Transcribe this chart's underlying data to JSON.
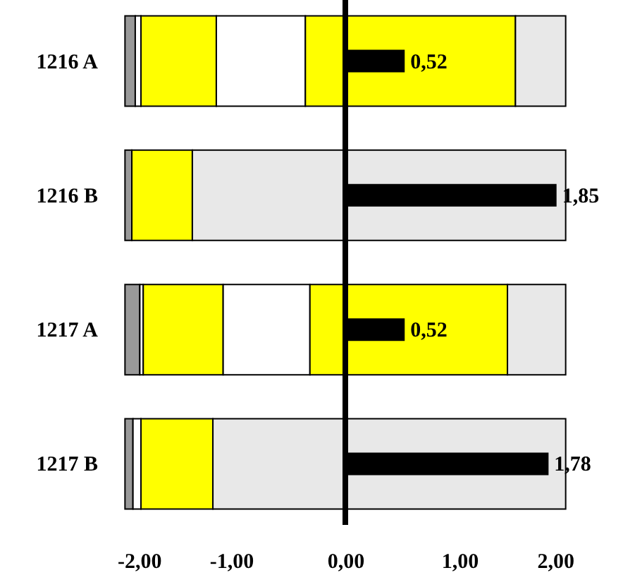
{
  "chart_data": {
    "type": "bar",
    "orientation": "horizontal",
    "categories": [
      "1216 A",
      "1216 B",
      "1217 A",
      "1217 B"
    ],
    "series": [
      {
        "color": "#999999",
        "base": [
          -1.93,
          -1.93,
          -1.93,
          -1.93
        ],
        "values": [
          0.09,
          0.06,
          0.13,
          0.07
        ]
      },
      {
        "color": "#ffffff",
        "base": [
          -1.84,
          null,
          -1.8,
          -1.86
        ],
        "values": [
          0.05,
          null,
          0.03,
          0.07
        ]
      },
      {
        "color": "#ffff00",
        "base": [
          -1.79,
          -1.87,
          -1.77,
          -1.79
        ],
        "values": [
          0.66,
          0.53,
          0.7,
          0.63
        ]
      },
      {
        "color": "#ffffff",
        "base": [
          -1.13,
          null,
          -1.07,
          null
        ],
        "values": [
          0.78,
          null,
          0.76,
          null
        ]
      },
      {
        "color": "#ffff00",
        "base": [
          -0.35,
          null,
          -0.31,
          null
        ],
        "values": [
          1.84,
          null,
          1.73,
          null
        ]
      },
      {
        "color": "#e8e8e8",
        "base": [
          1.49,
          -1.34,
          1.42,
          -1.16
        ],
        "values": [
          0.44,
          3.27,
          0.51,
          3.09
        ]
      },
      {
        "color": "#000000",
        "values": [
          0.52,
          1.85,
          0.52,
          1.78
        ],
        "value_labels": [
          "0,52",
          "1,85",
          "0,52",
          "1,78"
        ]
      }
    ],
    "xlim": [
      -2,
      2
    ],
    "xticks": [
      {
        "value": -2,
        "label": "-2,00"
      },
      {
        "value": -1,
        "label": "-1,00"
      },
      {
        "value": 0,
        "label": "0,00"
      },
      {
        "value": 1,
        "label": "1,00"
      },
      {
        "value": 2,
        "label": "2,00"
      }
    ],
    "ref_lines": [
      {
        "axis": "x",
        "value": 0,
        "color": "#000000"
      }
    ]
  }
}
